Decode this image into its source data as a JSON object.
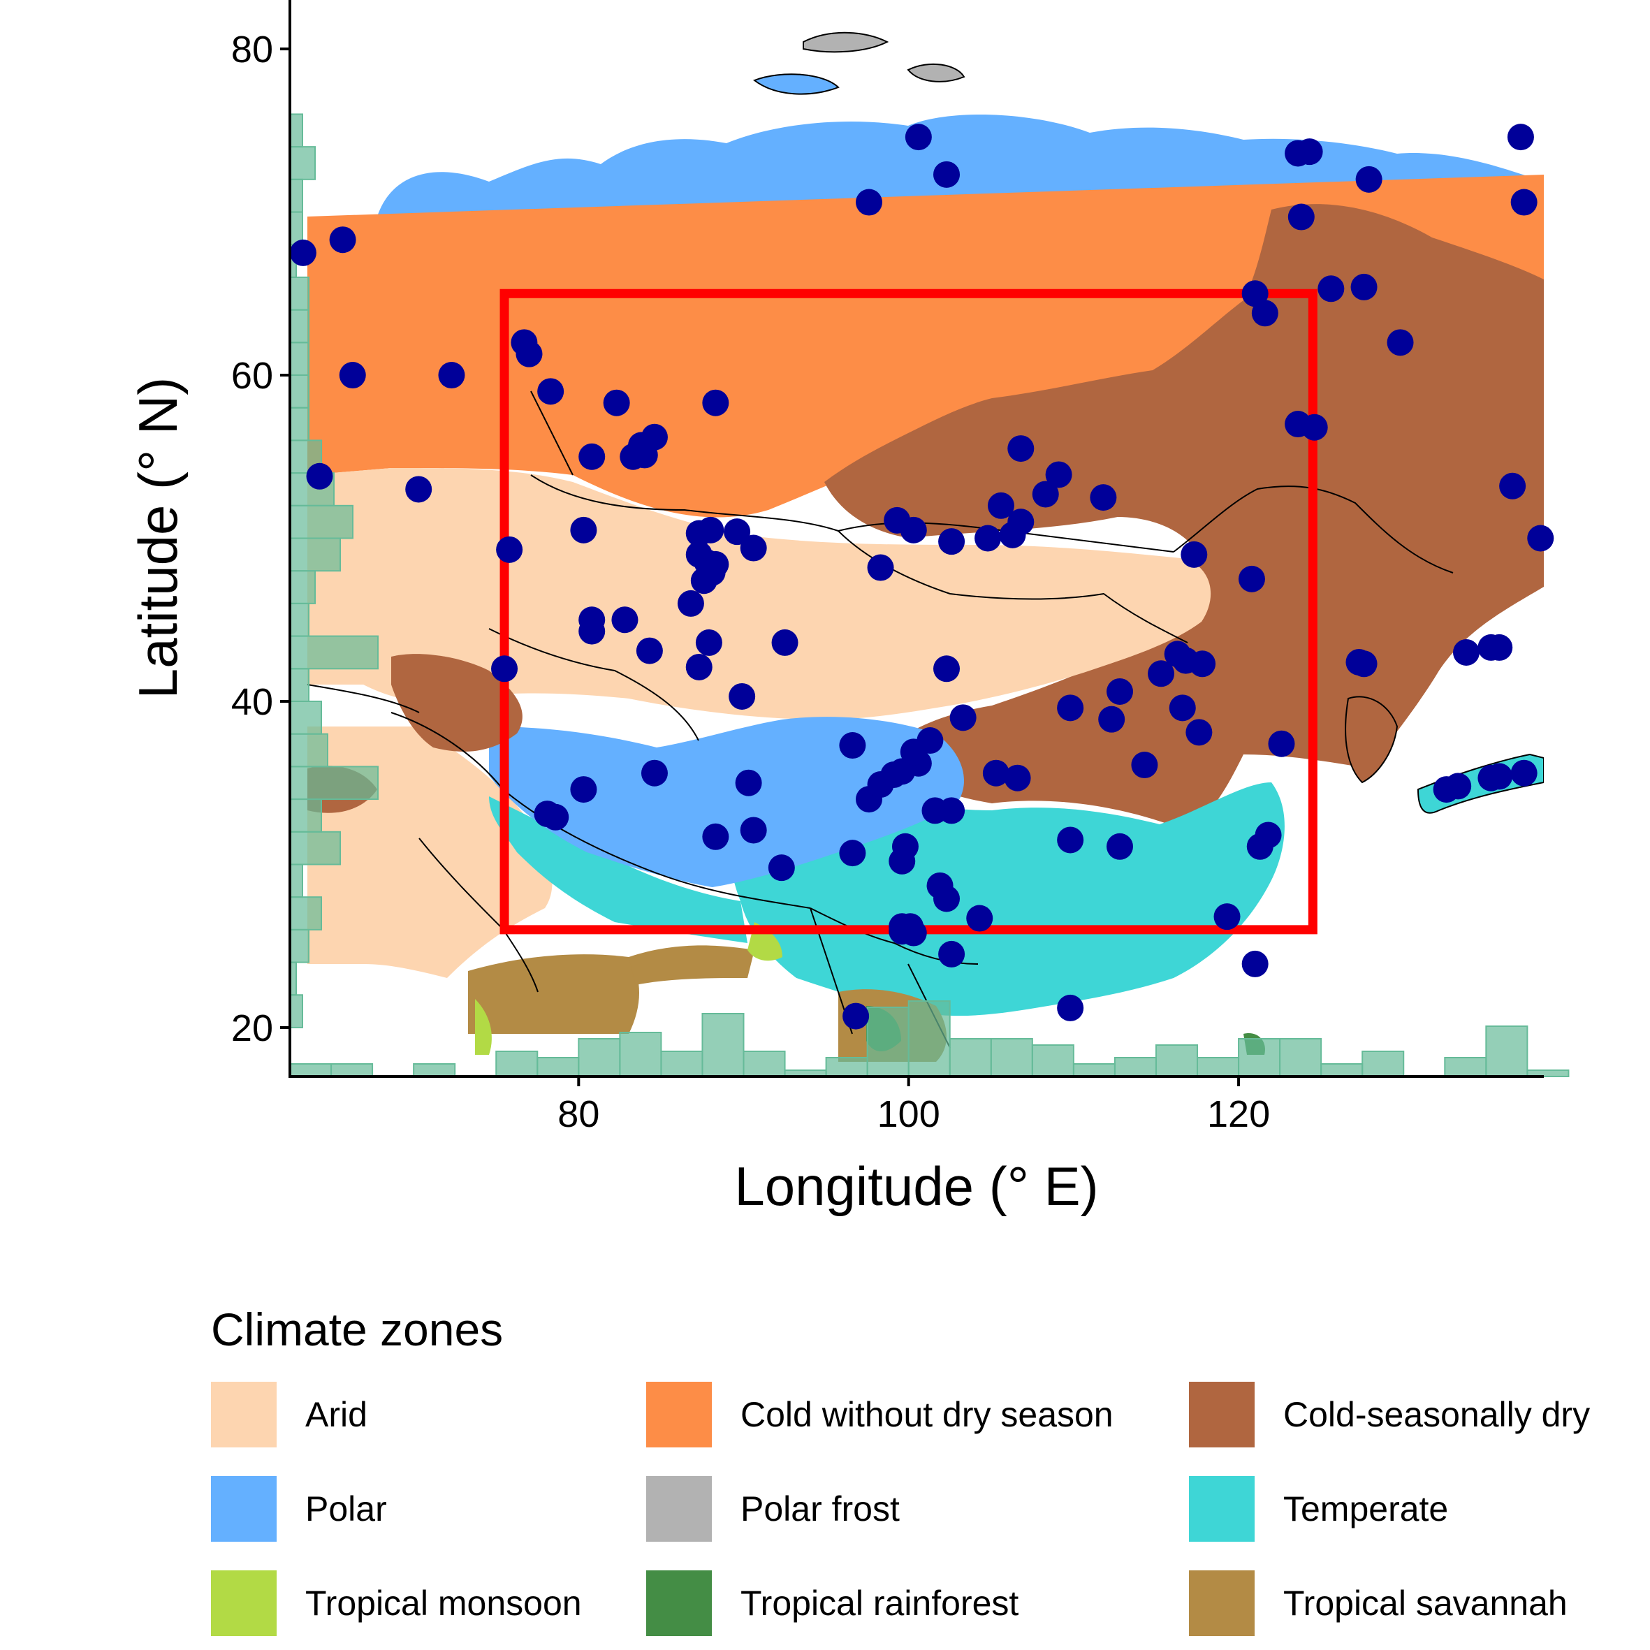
{
  "chart_data": {
    "type": "scatter",
    "subtype": "map-with-points-and-marginal-histograms",
    "xlabel": "Longitude (° E)",
    "ylabel": "Latitude (° N)",
    "xlim": [
      62.5,
      138.5
    ],
    "ylim": [
      17,
      83
    ],
    "x_ticks": [
      80,
      100,
      120
    ],
    "y_ticks": [
      20,
      40,
      60,
      80
    ],
    "grid": false,
    "study_region": {
      "lon": [
        75.5,
        124.5
      ],
      "lat": [
        26,
        65
      ],
      "color": "#ff0000"
    },
    "sites_color": "#000099",
    "histogram_color": "#66bb99",
    "sites": [
      [
        63.3,
        67.5
      ],
      [
        65.7,
        68.3
      ],
      [
        64.3,
        53.8
      ],
      [
        66.3,
        60
      ],
      [
        70.3,
        53
      ],
      [
        72.3,
        60
      ],
      [
        75.8,
        49.3
      ],
      [
        75.5,
        42
      ],
      [
        76.7,
        62
      ],
      [
        77,
        61.3
      ],
      [
        78.3,
        59
      ],
      [
        80.3,
        50.5
      ],
      [
        80.8,
        55
      ],
      [
        80.8,
        45
      ],
      [
        80.8,
        44.3
      ],
      [
        82.3,
        58.3
      ],
      [
        82.8,
        45
      ],
      [
        83.3,
        55
      ],
      [
        83.8,
        55.7
      ],
      [
        84,
        55.1
      ],
      [
        84.6,
        56.2
      ],
      [
        84.3,
        43.1
      ],
      [
        88.3,
        58.3
      ],
      [
        86.8,
        46
      ],
      [
        87.3,
        50.3
      ],
      [
        88,
        50.5
      ],
      [
        87.3,
        49
      ],
      [
        87.8,
        48.5
      ],
      [
        88.3,
        48.4
      ],
      [
        87.6,
        47.4
      ],
      [
        88.1,
        47.9
      ],
      [
        87.9,
        43.6
      ],
      [
        87.3,
        42.1
      ],
      [
        89.6,
        50.4
      ],
      [
        90.6,
        49.4
      ],
      [
        89.9,
        40.3
      ],
      [
        92.5,
        43.6
      ],
      [
        84.6,
        35.6
      ],
      [
        80.3,
        34.6
      ],
      [
        78.1,
        33.1
      ],
      [
        78.6,
        32.9
      ],
      [
        88.3,
        31.7
      ],
      [
        90.3,
        35
      ],
      [
        90.6,
        32.1
      ],
      [
        92.3,
        29.8
      ],
      [
        96.6,
        37.3
      ],
      [
        97.6,
        34
      ],
      [
        98.3,
        34.9
      ],
      [
        99.1,
        35.5
      ],
      [
        99.6,
        35.7
      ],
      [
        100.6,
        36.2
      ],
      [
        101.3,
        37.6
      ],
      [
        100.3,
        36.9
      ],
      [
        96.6,
        30.7
      ],
      [
        99.6,
        30.2
      ],
      [
        99.8,
        31.1
      ],
      [
        101.6,
        33.3
      ],
      [
        102.6,
        33.3
      ],
      [
        101.9,
        28.7
      ],
      [
        102.3,
        27.9
      ],
      [
        104.3,
        26.7
      ],
      [
        99.6,
        26.2
      ],
      [
        100.1,
        26.2
      ],
      [
        99.6,
        25.9
      ],
      [
        100.3,
        25.8
      ],
      [
        102.6,
        24.5
      ],
      [
        96.8,
        20.7
      ],
      [
        99.3,
        51.1
      ],
      [
        100.3,
        50.5
      ],
      [
        98.3,
        48.2
      ],
      [
        102.6,
        49.8
      ],
      [
        104.8,
        50
      ],
      [
        105.6,
        52
      ],
      [
        106.8,
        55.5
      ],
      [
        106.3,
        50.2
      ],
      [
        106.8,
        51
      ],
      [
        108.3,
        52.7
      ],
      [
        109.1,
        53.9
      ],
      [
        111.8,
        52.5
      ],
      [
        117.3,
        49
      ],
      [
        102.3,
        42
      ],
      [
        103.3,
        39
      ],
      [
        105.3,
        35.6
      ],
      [
        106.6,
        35.3
      ],
      [
        109.8,
        39.6
      ],
      [
        112.3,
        38.9
      ],
      [
        112.8,
        40.6
      ],
      [
        114.3,
        36.1
      ],
      [
        115.3,
        41.7
      ],
      [
        116.6,
        39.6
      ],
      [
        116.3,
        42.9
      ],
      [
        116.8,
        42.5
      ],
      [
        117.8,
        42.3
      ],
      [
        117.6,
        38.1
      ],
      [
        122.6,
        37.4
      ],
      [
        121.3,
        31.1
      ],
      [
        121.8,
        31.8
      ],
      [
        109.8,
        31.5
      ],
      [
        112.8,
        31.1
      ],
      [
        119.3,
        26.8
      ],
      [
        121,
        23.9
      ],
      [
        109.8,
        21.2
      ],
      [
        120.8,
        47.5
      ],
      [
        121,
        65
      ],
      [
        121.6,
        63.8
      ],
      [
        123.6,
        73.6
      ],
      [
        124.3,
        73.7
      ],
      [
        123.8,
        69.7
      ],
      [
        125.6,
        65.3
      ],
      [
        127.6,
        65.4
      ],
      [
        127.9,
        72
      ],
      [
        129.8,
        62
      ],
      [
        127.3,
        42.4
      ],
      [
        127.6,
        42.3
      ],
      [
        123.6,
        57
      ],
      [
        124.6,
        56.8
      ],
      [
        137.1,
        74.6
      ],
      [
        137.3,
        70.6
      ],
      [
        136.6,
        53.2
      ],
      [
        138.3,
        50
      ],
      [
        132.6,
        34.6
      ],
      [
        133.3,
        34.8
      ],
      [
        133.8,
        43
      ],
      [
        135.3,
        43.3
      ],
      [
        135.8,
        43.3
      ],
      [
        135.3,
        35.3
      ],
      [
        135.8,
        35.4
      ],
      [
        137.3,
        35.6
      ],
      [
        100.6,
        74.6
      ],
      [
        102.3,
        72.3
      ],
      [
        97.6,
        70.6
      ]
    ],
    "legend": {
      "title": "Climate zones",
      "position": "bottom",
      "items": [
        {
          "label": "Arid",
          "color": "#fdd5b0"
        },
        {
          "label": "Cold without dry season",
          "color": "#fd8d47"
        },
        {
          "label": "Cold-seasonally dry",
          "color": "#b06640"
        },
        {
          "label": "Polar",
          "color": "#64b0ff"
        },
        {
          "label": "Polar frost",
          "color": "#b2b2b2"
        },
        {
          "label": "Temperate",
          "color": "#3ed6d6"
        },
        {
          "label": "Tropical monsoon",
          "color": "#b2da45"
        },
        {
          "label": "Tropical rainforest",
          "color": "#448d45"
        },
        {
          "label": "Tropical savannah",
          "color": "#b38b45"
        }
      ]
    }
  }
}
